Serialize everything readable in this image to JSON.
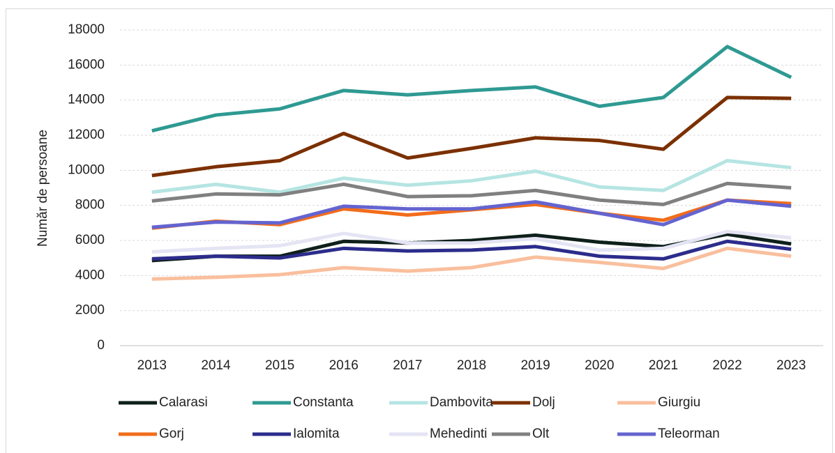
{
  "chart_data": {
    "type": "line",
    "y_label": "Număr de persoane",
    "x": [
      2013,
      2014,
      2015,
      2016,
      2017,
      2018,
      2019,
      2020,
      2021,
      2022,
      2023
    ],
    "ylim": [
      0,
      18000
    ],
    "yticks": [
      0,
      2000,
      4000,
      6000,
      8000,
      10000,
      12000,
      14000,
      16000,
      18000
    ],
    "grid": true,
    "legend": "bottom",
    "series": [
      {
        "name": "Calarasi",
        "color": "#0f201b",
        "values": [
          4850,
          5100,
          5100,
          5950,
          5850,
          6000,
          6300,
          5900,
          5650,
          6350,
          5800
        ]
      },
      {
        "name": "Constanta",
        "color": "#2e9a92",
        "values": [
          12250,
          13150,
          13500,
          14550,
          14300,
          14550,
          14750,
          13650,
          14150,
          17050,
          15300
        ]
      },
      {
        "name": "Dambovita",
        "color": "#b5e5e2",
        "values": [
          8750,
          9200,
          8750,
          9550,
          9150,
          9400,
          9950,
          9050,
          8850,
          10550,
          10150
        ]
      },
      {
        "name": "Dolj",
        "color": "#7b3000",
        "values": [
          9700,
          10200,
          10550,
          12100,
          10700,
          11250,
          11850,
          11700,
          11200,
          14150,
          14100
        ]
      },
      {
        "name": "Giurgiu",
        "color": "#f9bf9d",
        "values": [
          3800,
          3900,
          4050,
          4450,
          4250,
          4450,
          5050,
          4750,
          4400,
          5550,
          5100
        ]
      },
      {
        "name": "Gorj",
        "color": "#f26d1b",
        "values": [
          6700,
          7100,
          6900,
          7800,
          7450,
          7750,
          8050,
          7550,
          7150,
          8300,
          8100
        ]
      },
      {
        "name": "Ialomita",
        "color": "#2c2c8c",
        "values": [
          4950,
          5100,
          5000,
          5550,
          5400,
          5450,
          5650,
          5100,
          4950,
          5950,
          5500
        ]
      },
      {
        "name": "Mehedinti",
        "color": "#e4e4f4",
        "values": [
          5350,
          5550,
          5700,
          6400,
          5850,
          5850,
          6100,
          5450,
          5550,
          6500,
          6150
        ]
      },
      {
        "name": "Olt",
        "color": "#808080",
        "values": [
          8250,
          8650,
          8600,
          9200,
          8500,
          8550,
          8850,
          8300,
          8050,
          9250,
          9000
        ]
      },
      {
        "name": "Teleorman",
        "color": "#6464d0",
        "values": [
          6750,
          7050,
          7000,
          7950,
          7800,
          7800,
          8200,
          7550,
          6900,
          8300,
          7950
        ]
      }
    ]
  }
}
